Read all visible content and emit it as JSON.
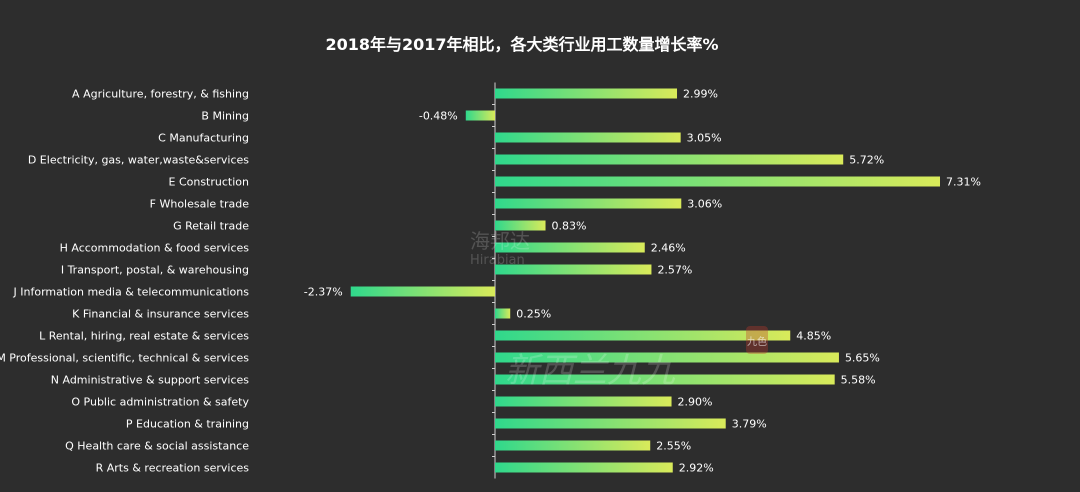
{
  "chart_data": {
    "type": "bar",
    "orientation": "horizontal",
    "title": "2018年与2017年相比，各大类行业用工数量增长率%",
    "categories": [
      "A  Agriculture, forestry, & fishing",
      "B  Mining",
      "C  Manufacturing",
      "D  Electricity, gas, water,waste&services",
      "E  Construction",
      "F  Wholesale trade",
      "G  Retail trade",
      "H  Accommodation & food services",
      "I  Transport, postal, & warehousing",
      "J  Information media & telecommunications",
      "K  Financial & insurance services",
      "L  Rental, hiring,  real estate  & services",
      "M  Professional, scientific, technical & services",
      "N  Administrative & support services",
      "O  Public administration & safety",
      "P  Education & training",
      "Q  Health care & social assistance",
      "R  Arts & recreation services"
    ],
    "values": [
      2.99,
      -0.48,
      3.05,
      5.72,
      7.31,
      3.06,
      0.83,
      2.46,
      2.57,
      -2.37,
      0.25,
      4.85,
      5.65,
      5.58,
      2.9,
      3.79,
      2.55,
      2.92
    ],
    "labels": [
      "2.99%",
      "-0.48%",
      "3.05%",
      "5.72%",
      "7.31%",
      "3.06%",
      "0.83%",
      "2.46%",
      "2.57%",
      "-2.37%",
      "0.25%",
      "4.85%",
      "5.65%",
      "5.58%",
      "2.90%",
      "3.79%",
      "2.55%",
      "2.92%"
    ],
    "xlim": [
      -2.37,
      7.31
    ],
    "xlabel": "",
    "ylabel": "",
    "grid": false,
    "legend": "none"
  },
  "watermarks": {
    "logo_cn": "海邦达",
    "logo_en": "Hirabian",
    "calligraphy": "新西兰九九",
    "seal": "九色"
  },
  "colors": {
    "background": "#2d2d2d",
    "bar_gradient_start": "#2fd88c",
    "bar_gradient_end": "#d9ea5a",
    "text": "#ffffff",
    "axis": "#d0d0d0"
  }
}
